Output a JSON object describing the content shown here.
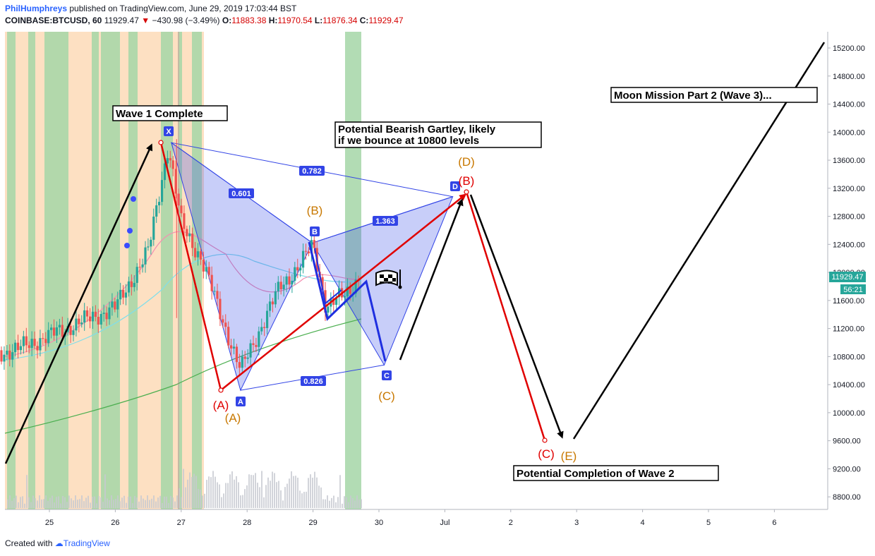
{
  "header": {
    "author": "PhilHumphreys",
    "published": "published on TradingView.com, June 29, 2019 17:03:44 BST",
    "symbol": "COINBASE:BTCUSD, 60",
    "last": "11929.47",
    "arrow": "▼",
    "change": "−430.98 (−3.49%)",
    "o_label": "O:",
    "o_val": "11883.38",
    "h_label": "H:",
    "h_val": "11970.54",
    "l_label": "L:",
    "l_val": "11876.34",
    "c_label": "C:",
    "c_val": "11929.47"
  },
  "footer": {
    "created": "Created with",
    "brand": "TradingView"
  },
  "colors": {
    "up": "#26a69a",
    "down": "#ef5350",
    "pattern": "#3244e6",
    "red": "#e00000",
    "orange": "#c87800",
    "green_zone": "#a5d6a7",
    "orange_zone": "#fde0c2"
  },
  "price_axis": {
    "ticks": [
      "15200.00",
      "14800.00",
      "14400.00",
      "14000.00",
      "13600.00",
      "13200.00",
      "12800.00",
      "12400.00",
      "12000.00",
      "11600.00",
      "11200.00",
      "10800.00",
      "10400.00",
      "10000.00",
      "9600.00",
      "9200.00",
      "8800.00"
    ],
    "last_price": "11929.47",
    "countdown": "56:21"
  },
  "time_axis": {
    "ticks": [
      "25",
      "26",
      "27",
      "28",
      "29",
      "30",
      "Jul",
      "2",
      "3",
      "4",
      "5",
      "6"
    ]
  },
  "annotations": {
    "wave1": "Wave 1 Complete",
    "gartley_1": "Potential Bearish Gartley, likely",
    "gartley_2": "if we bounce at 10800 levels",
    "moon": "Moon Mission Part 2 (Wave 3)...",
    "wave2": "Potential Completion of Wave 2"
  },
  "ratios": [
    "0.601",
    "0.782",
    "1.363",
    "0.826"
  ],
  "points": {
    "x": "X",
    "a": "A",
    "b": "B",
    "c": "C",
    "d": "D"
  },
  "wave_labels": {
    "a_red": "(A)",
    "a_orange": "(A)",
    "b_orange": "(B)",
    "c_orange": "(C)",
    "d_orange": "(D)",
    "b_red": "(B)",
    "c_red": "(C)",
    "e_orange": "(E)"
  },
  "chart_data": {
    "type": "line",
    "symbol": "COINBASE:BTCUSD",
    "interval": "60",
    "x_ticks": [
      "25",
      "26",
      "27",
      "28",
      "29",
      "30",
      "Jul",
      "2",
      "3",
      "4",
      "5",
      "6"
    ],
    "ylim": [
      8600,
      15400
    ],
    "price_close_approx": {
      "x": [
        "24",
        "24.5",
        "25",
        "25.5",
        "26",
        "26.5",
        "26.8",
        "27",
        "27.3",
        "27.6",
        "27.9",
        "28.2",
        "28.5",
        "28.8",
        "29",
        "29.2",
        "29.5",
        "29.7"
      ],
      "values": [
        10800,
        10900,
        11100,
        11300,
        11500,
        12300,
        13800,
        12700,
        12200,
        11400,
        10600,
        11200,
        11800,
        12100,
        12400,
        11500,
        11700,
        11929
      ]
    },
    "harmonic_pattern": {
      "points": [
        {
          "label": "X",
          "x": "26.85",
          "y": 13850
        },
        {
          "label": "A",
          "x": "27.9",
          "y": 10320
        },
        {
          "label": "B",
          "x": "28.99",
          "y": 12420
        },
        {
          "label": "C",
          "x": "30.08",
          "y": 10680
        },
        {
          "label": "D",
          "x": "31.12",
          "y": 13080
        }
      ],
      "ratios": [
        "0.601",
        "0.782",
        "1.363",
        "0.826"
      ]
    },
    "wave_path_red": {
      "x": [
        "26.7",
        "27.6",
        "31.25",
        "32.48"
      ],
      "y": [
        13850,
        10300,
        13150,
        9600
      ],
      "labels": [
        "(A)",
        "(B)",
        "(C)"
      ]
    },
    "projection_black": {
      "x": [
        "30.3",
        "31.22",
        "31.3",
        "32.7",
        "32.9",
        "35.7"
      ],
      "y": [
        10900,
        13100,
        13100,
        9680,
        9650,
        15250
      ]
    }
  }
}
